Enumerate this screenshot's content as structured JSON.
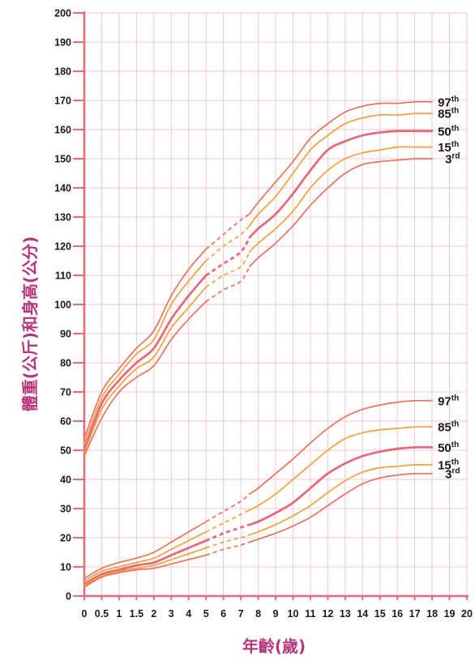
{
  "chart_data": {
    "type": "line",
    "title": "",
    "xlabel": "年齡(歲)",
    "ylabel": "體重(公斤)和身高(公分)",
    "xlim": [
      0,
      20
    ],
    "ylim": [
      0,
      200
    ],
    "grid": true,
    "x_ticks": [
      {
        "value": 0,
        "label": "0"
      },
      {
        "value": 0.5,
        "label": "0.5"
      },
      {
        "value": 1,
        "label": "1"
      },
      {
        "value": 1.5,
        "label": "1.5"
      },
      {
        "value": 2,
        "label": "2"
      },
      {
        "value": 3,
        "label": "3"
      },
      {
        "value": 4,
        "label": "4"
      },
      {
        "value": 5,
        "label": "5"
      },
      {
        "value": 6,
        "label": "6"
      },
      {
        "value": 7,
        "label": "7"
      },
      {
        "value": 8,
        "label": "8"
      },
      {
        "value": 9,
        "label": "9"
      },
      {
        "value": 10,
        "label": "10"
      },
      {
        "value": 11,
        "label": "11"
      },
      {
        "value": 12,
        "label": "12"
      },
      {
        "value": 13,
        "label": "13"
      },
      {
        "value": 14,
        "label": "14"
      },
      {
        "value": 15,
        "label": "15"
      },
      {
        "value": 16,
        "label": "16"
      },
      {
        "value": 17,
        "label": "17"
      },
      {
        "value": 18,
        "label": "18"
      },
      {
        "value": 19,
        "label": "19"
      },
      {
        "value": 20,
        "label": "20"
      }
    ],
    "y_ticks": [
      "0",
      "10",
      "20",
      "30",
      "40",
      "50",
      "60",
      "70",
      "80",
      "90",
      "100",
      "110",
      "120",
      "130",
      "140",
      "150",
      "160",
      "170",
      "180",
      "190",
      "200"
    ],
    "colors": {
      "axis": "#e8697f",
      "grid": "#f2c7ce",
      "p97": "#e8725e",
      "p85": "#f0a03c",
      "p50": "#e46a7c",
      "p15": "#f0a03c",
      "p3": "#e8725e",
      "axis_title": "#b5367a"
    },
    "series_labels": [
      {
        "key": "p97",
        "num": "97",
        "sup": "th"
      },
      {
        "key": "p85",
        "num": "85",
        "sup": "th"
      },
      {
        "key": "p50",
        "num": "50",
        "sup": "th"
      },
      {
        "key": "p15",
        "num": "15",
        "sup": "th"
      },
      {
        "key": "p3",
        "num": "3",
        "sup": "rd"
      }
    ],
    "groups": [
      {
        "name": "height",
        "series": {
          "p97": [
            [
              0,
              54
            ],
            [
              0.5,
              70
            ],
            [
              1,
              78
            ],
            [
              1.5,
              85
            ],
            [
              2,
              91
            ],
            [
              3,
              103
            ],
            [
              4,
              112
            ],
            [
              5,
              119
            ],
            [
              6,
              124
            ],
            [
              7,
              129
            ],
            [
              7.5,
              131
            ],
            [
              8,
              135
            ],
            [
              9,
              142
            ],
            [
              10,
              149
            ],
            [
              11,
              157
            ],
            [
              12,
              162
            ],
            [
              13,
              166
            ],
            [
              14,
              168
            ],
            [
              15,
              169
            ],
            [
              16,
              169
            ],
            [
              17,
              169.5
            ],
            [
              18,
              169.5
            ]
          ],
          "p85": [
            [
              0,
              52
            ],
            [
              0.5,
              68
            ],
            [
              1,
              76
            ],
            [
              1.5,
              83
            ],
            [
              2,
              88
            ],
            [
              3,
              100
            ],
            [
              4,
              108
            ],
            [
              5,
              115
            ],
            [
              6,
              120
            ],
            [
              7,
              124
            ],
            [
              7.5,
              127
            ],
            [
              8,
              131
            ],
            [
              9,
              137
            ],
            [
              10,
              145
            ],
            [
              11,
              153
            ],
            [
              12,
              158
            ],
            [
              13,
              162
            ],
            [
              14,
              164
            ],
            [
              15,
              165
            ],
            [
              16,
              165
            ],
            [
              17,
              165.5
            ],
            [
              18,
              165.5
            ]
          ],
          "p50": [
            [
              0,
              50
            ],
            [
              0.5,
              66
            ],
            [
              1,
              74
            ],
            [
              1.5,
              80
            ],
            [
              2,
              85
            ],
            [
              3,
              95
            ],
            [
              4,
              103
            ],
            [
              5,
              110
            ],
            [
              6,
              114
            ],
            [
              7,
              118
            ],
            [
              7.5,
              123
            ],
            [
              8,
              126
            ],
            [
              9,
              131
            ],
            [
              10,
              138
            ],
            [
              11,
              146
            ],
            [
              12,
              153
            ],
            [
              13,
              156
            ],
            [
              14,
              158
            ],
            [
              15,
              159
            ],
            [
              16,
              159.5
            ],
            [
              17,
              159.5
            ],
            [
              18,
              159.5
            ]
          ],
          "p15": [
            [
              0,
              49
            ],
            [
              0.5,
              64
            ],
            [
              1,
              72
            ],
            [
              1.5,
              78
            ],
            [
              2,
              82
            ],
            [
              3,
              92
            ],
            [
              4,
              99
            ],
            [
              5,
              106
            ],
            [
              6,
              110
            ],
            [
              7,
              113
            ],
            [
              7.5,
              118
            ],
            [
              8,
              121
            ],
            [
              9,
              126
            ],
            [
              10,
              132
            ],
            [
              11,
              140
            ],
            [
              12,
              146
            ],
            [
              13,
              150
            ],
            [
              14,
              152
            ],
            [
              15,
              153
            ],
            [
              16,
              154
            ],
            [
              17,
              154
            ],
            [
              18,
              154
            ]
          ],
          "p3": [
            [
              0,
              48
            ],
            [
              0.5,
              61
            ],
            [
              1,
              70
            ],
            [
              1.5,
              75
            ],
            [
              2,
              79
            ],
            [
              3,
              88
            ],
            [
              4,
              95
            ],
            [
              5,
              101
            ],
            [
              6,
              105
            ],
            [
              7,
              108
            ],
            [
              7.5,
              113
            ],
            [
              8,
              116
            ],
            [
              9,
              121
            ],
            [
              10,
              127
            ],
            [
              11,
              134
            ],
            [
              12,
              140
            ],
            [
              13,
              145
            ],
            [
              14,
              148
            ],
            [
              15,
              149
            ],
            [
              16,
              149.5
            ],
            [
              17,
              150
            ],
            [
              18,
              150
            ]
          ]
        }
      },
      {
        "name": "weight",
        "series": {
          "p97": [
            [
              0,
              6
            ],
            [
              0.5,
              9.5
            ],
            [
              1,
              11.5
            ],
            [
              1.5,
              13
            ],
            [
              2,
              15
            ],
            [
              3,
              18.5
            ],
            [
              4,
              22
            ],
            [
              5,
              25.5
            ],
            [
              6,
              29
            ],
            [
              7,
              32.5
            ],
            [
              7.5,
              35
            ],
            [
              8,
              37
            ],
            [
              9,
              42
            ],
            [
              10,
              47
            ],
            [
              11,
              52.5
            ],
            [
              12,
              57.5
            ],
            [
              13,
              61.5
            ],
            [
              14,
              64
            ],
            [
              15,
              65.5
            ],
            [
              16,
              66.5
            ],
            [
              17,
              67
            ],
            [
              18,
              67
            ]
          ],
          "p85": [
            [
              0,
              5
            ],
            [
              0.5,
              8.5
            ],
            [
              1,
              10
            ],
            [
              1.5,
              11.5
            ],
            [
              2,
              13
            ],
            [
              3,
              16
            ],
            [
              4,
              19
            ],
            [
              5,
              22
            ],
            [
              6,
              25
            ],
            [
              7,
              28
            ],
            [
              7.5,
              29.5
            ],
            [
              8,
              31
            ],
            [
              9,
              35
            ],
            [
              10,
              40
            ],
            [
              11,
              45
            ],
            [
              12,
              50
            ],
            [
              13,
              54
            ],
            [
              14,
              56
            ],
            [
              15,
              57
            ],
            [
              16,
              57.5
            ],
            [
              17,
              58
            ],
            [
              18,
              58
            ]
          ],
          "p50": [
            [
              0,
              4
            ],
            [
              0.5,
              7.5
            ],
            [
              1,
              9
            ],
            [
              1.5,
              10.5
            ],
            [
              2,
              11.5
            ],
            [
              3,
              14
            ],
            [
              4,
              16.5
            ],
            [
              5,
              19
            ],
            [
              6,
              21.5
            ],
            [
              7,
              23.5
            ],
            [
              7.5,
              24.5
            ],
            [
              8,
              25.5
            ],
            [
              9,
              28.5
            ],
            [
              10,
              32
            ],
            [
              11,
              37
            ],
            [
              12,
              42
            ],
            [
              13,
              45.5
            ],
            [
              14,
              48
            ],
            [
              15,
              49.5
            ],
            [
              16,
              50.5
            ],
            [
              17,
              51
            ],
            [
              18,
              51
            ]
          ],
          "p15": [
            [
              0,
              3.5
            ],
            [
              0.5,
              7
            ],
            [
              1,
              8.5
            ],
            [
              1.5,
              9.5
            ],
            [
              2,
              10.5
            ],
            [
              3,
              12.5
            ],
            [
              4,
              14.5
            ],
            [
              5,
              16.5
            ],
            [
              6,
              18.5
            ],
            [
              7,
              20
            ],
            [
              7.5,
              21
            ],
            [
              8,
              22
            ],
            [
              9,
              24.5
            ],
            [
              10,
              27.5
            ],
            [
              11,
              31
            ],
            [
              12,
              35.5
            ],
            [
              13,
              39.5
            ],
            [
              14,
              42.5
            ],
            [
              15,
              44
            ],
            [
              16,
              44.5
            ],
            [
              17,
              45
            ],
            [
              18,
              45
            ]
          ],
          "p3": [
            [
              0,
              3
            ],
            [
              0.5,
              6.5
            ],
            [
              1,
              8
            ],
            [
              1.5,
              9
            ],
            [
              2,
              9.5
            ],
            [
              3,
              11
            ],
            [
              4,
              12.5
            ],
            [
              5,
              14
            ],
            [
              6,
              16
            ],
            [
              7,
              17.5
            ],
            [
              7.5,
              18.5
            ],
            [
              8,
              19.5
            ],
            [
              9,
              21.5
            ],
            [
              10,
              24
            ],
            [
              11,
              27
            ],
            [
              12,
              31
            ],
            [
              13,
              35
            ],
            [
              14,
              38.5
            ],
            [
              15,
              40.5
            ],
            [
              16,
              41.5
            ],
            [
              17,
              42
            ],
            [
              18,
              42
            ]
          ]
        }
      }
    ]
  }
}
